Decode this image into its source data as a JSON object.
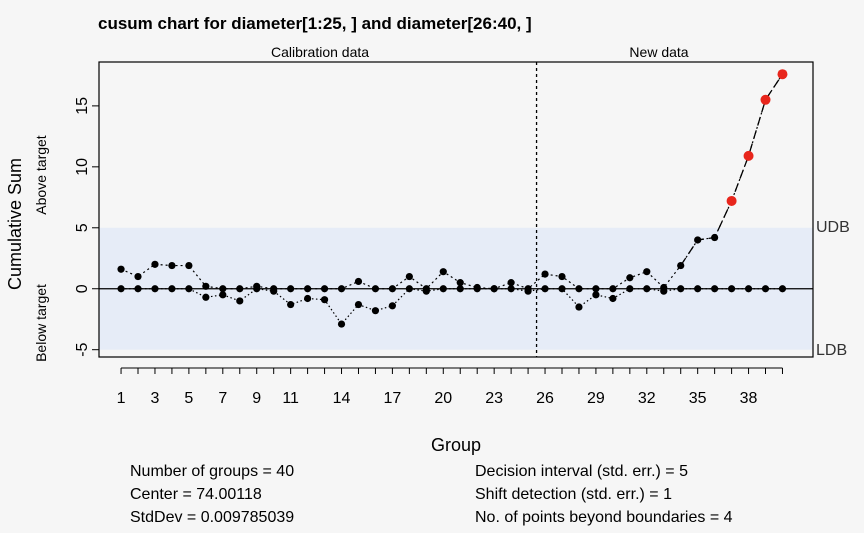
{
  "chart_data": {
    "type": "scatter",
    "title": "cusum chart for diameter[1:25, ] and diameter[26:40, ]",
    "section_labels": [
      "Calibration data",
      "New data"
    ],
    "xlabel": "Group",
    "ylabel": "Cumulative Sum",
    "ylabel_above": "Above target",
    "ylabel_below": "Below target",
    "x_ticks": [
      "1",
      "3",
      "5",
      "7",
      "9",
      "11",
      "14",
      "17",
      "20",
      "23",
      "26",
      "29",
      "32",
      "35",
      "38"
    ],
    "y_ticks": [
      "-5",
      "0",
      "5",
      "10",
      "15"
    ],
    "ylim": [
      -5.6,
      18.6
    ],
    "xlim": [
      -0.3,
      41.8
    ],
    "udb": 5,
    "ldb": -5,
    "udb_label": "UDB",
    "ldb_label": "LDB",
    "center_line": 0,
    "split_after_group": 25,
    "series": [
      {
        "name": "",
        "kind": "upper",
        "x": [
          1,
          2,
          3,
          4,
          5,
          6,
          7,
          8,
          9,
          10,
          11,
          12,
          13,
          14,
          15,
          16,
          17,
          18,
          19,
          20,
          21,
          22,
          23,
          24,
          25,
          26,
          27,
          28,
          29,
          30,
          31,
          32,
          33,
          34,
          35,
          36,
          37,
          38,
          39,
          40
        ],
        "values": [
          1.6,
          1.0,
          2.0,
          1.9,
          1.9,
          0.2,
          0.0,
          0.0,
          0.2,
          0.0,
          0.0,
          0.0,
          0.0,
          0.0,
          0.6,
          0.0,
          0.0,
          1.0,
          0.0,
          1.4,
          0.5,
          0.1,
          0.0,
          0.5,
          0.0,
          1.2,
          1.0,
          0.0,
          0.0,
          0.0,
          0.9,
          1.4,
          0.1,
          1.9,
          4.0,
          4.2,
          7.2,
          10.9,
          15.5,
          17.6
        ]
      },
      {
        "name": "",
        "kind": "lower",
        "x": [
          1,
          2,
          3,
          4,
          5,
          6,
          7,
          8,
          9,
          10,
          11,
          12,
          13,
          14,
          15,
          16,
          17,
          18,
          19,
          20,
          21,
          22,
          23,
          24,
          25,
          26,
          27,
          28,
          29,
          30,
          31,
          32,
          33,
          34,
          35,
          36,
          37,
          38,
          39,
          40
        ],
        "values": [
          0.0,
          0.0,
          0.0,
          0.0,
          0.0,
          -0.7,
          -0.5,
          -1.0,
          0.0,
          -0.2,
          -1.3,
          -0.8,
          -0.9,
          -2.9,
          -1.3,
          -1.8,
          -1.4,
          0.0,
          -0.2,
          0.0,
          0.0,
          0.0,
          0.0,
          0.0,
          -0.2,
          0.0,
          0.0,
          -1.5,
          -0.5,
          -0.8,
          0.0,
          0.0,
          -0.2,
          0.0,
          0.0,
          0.0,
          0.0,
          0.0,
          0.0,
          0.0
        ]
      }
    ],
    "point_color": "#000000",
    "violation_color": "#e8261c",
    "band_color": "#e6ecf7",
    "stats_left": [
      "Number of groups = 40",
      "Center = 74.00118",
      "StdDev = 0.009785039"
    ],
    "stats_right": [
      "Decision interval (std. err.) = 5",
      "Shift detection (std. err.) = 1",
      "No. of points beyond boundaries = 4"
    ]
  }
}
